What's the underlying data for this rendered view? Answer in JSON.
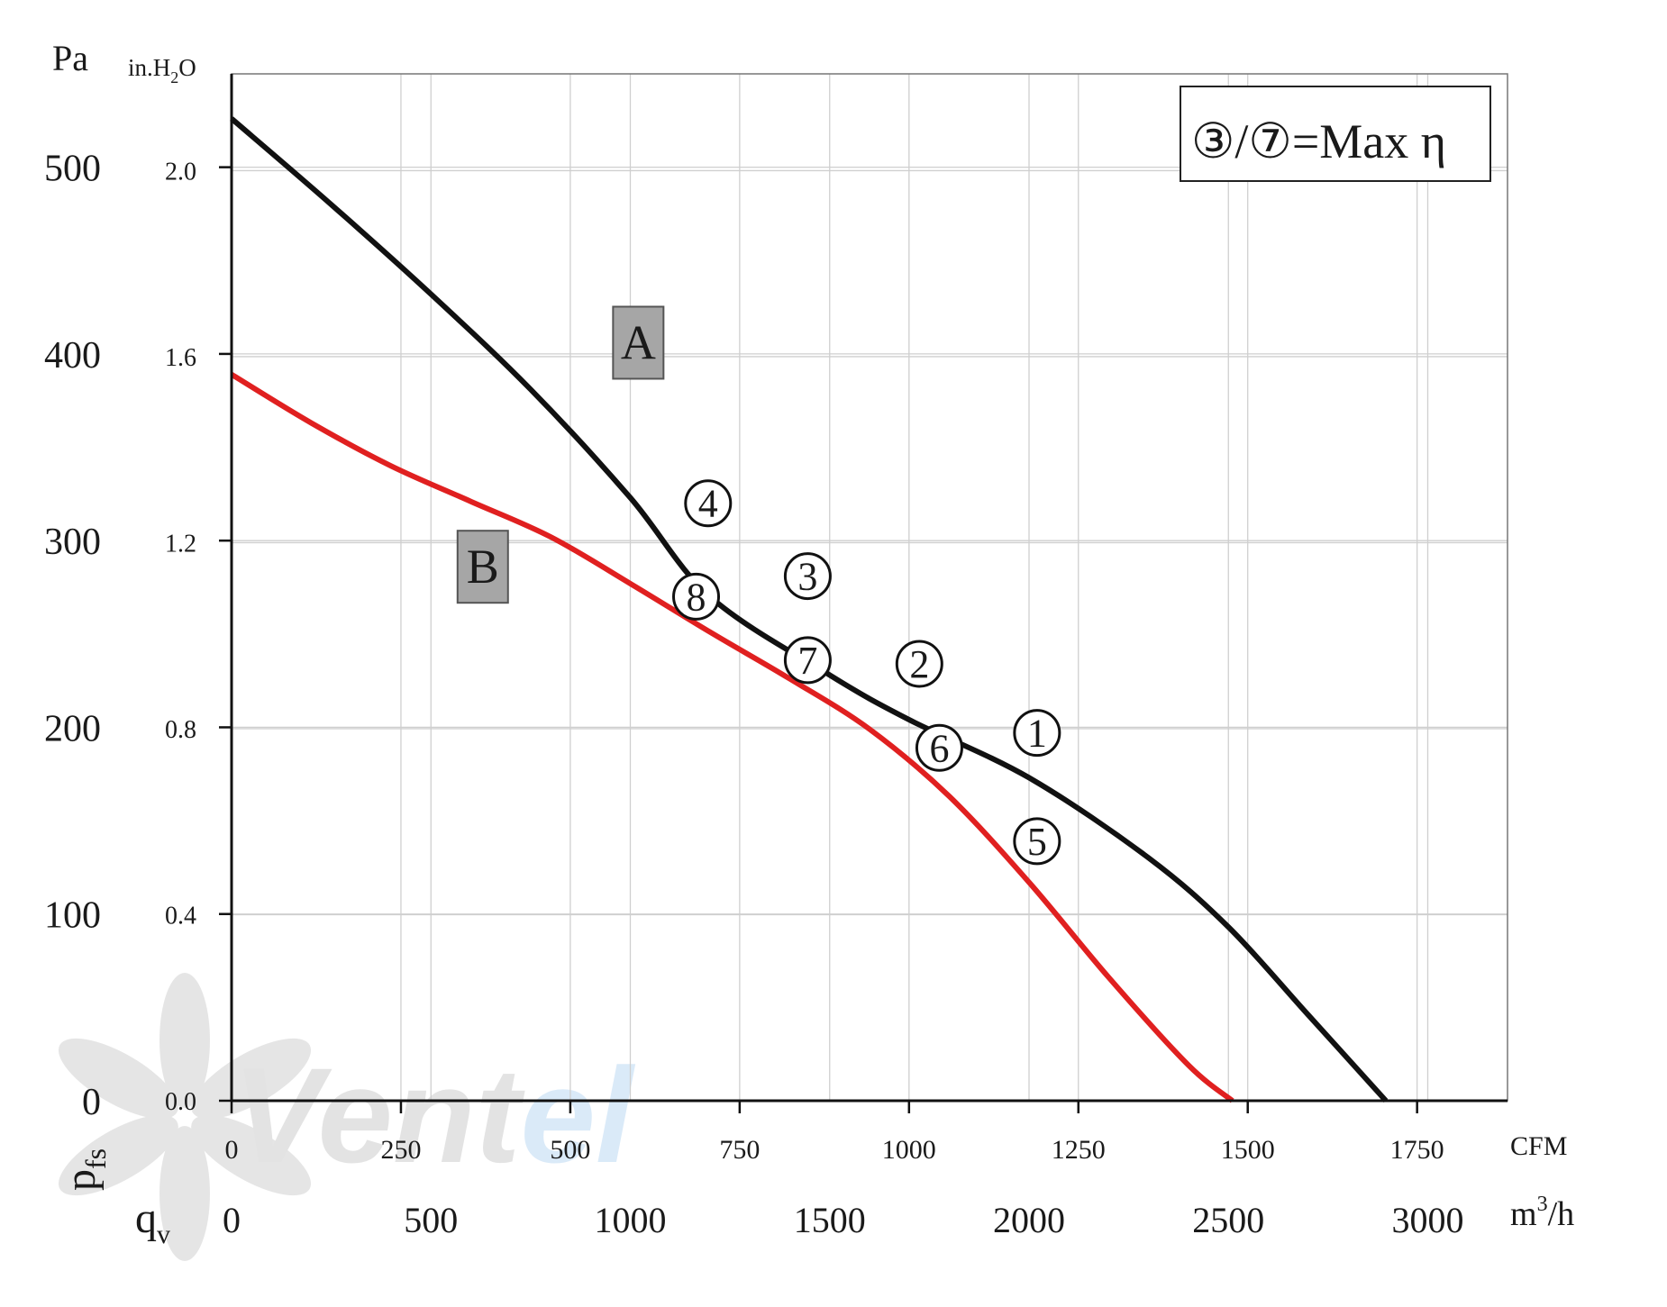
{
  "chart_data": {
    "type": "line",
    "y_left_unit": "Pa",
    "y_inner_unit": "in.H",
    "y_inner_unit_sub": "2",
    "y_inner_unit_tail": "O",
    "y_pa_ticks": [
      0,
      100,
      200,
      300,
      400,
      500
    ],
    "y_inh2o_ticks": [
      "0.0",
      "0.4",
      "0.8",
      "1.2",
      "1.6",
      "2.0"
    ],
    "ylim_pa": [
      0,
      550
    ],
    "x_cfm_label": "CFM",
    "x_cfm_ticks": [
      "0",
      "250",
      "500",
      "750",
      "1000",
      "1250",
      "1500",
      "1750"
    ],
    "x_m3h_label": "m",
    "x_m3h_label_sup": "3",
    "x_m3h_label_tail": "/h",
    "x_m3h_ticks": [
      "0",
      "500",
      "1000",
      "1500",
      "2000",
      "2500",
      "3000"
    ],
    "xlim_m3h": [
      0,
      3200
    ],
    "ylabel_main": "p",
    "ylabel_main_sub": "fs",
    "xlabel_main": "q",
    "xlabel_main_sub": "v",
    "legend_text": "③/⑦=Max η",
    "grid": true,
    "series": [
      {
        "name": "A",
        "color": "#111111",
        "x": [
          0,
          250,
          500,
          750,
          1000,
          1200,
          1500,
          1700,
          2000,
          2300,
          2500,
          2700,
          2895
        ],
        "y": [
          526,
          480,
          432,
          381,
          323,
          270,
          228,
          204,
          173,
          130,
          93,
          46,
          0
        ]
      },
      {
        "name": "B",
        "color": "#e02020",
        "x": [
          0,
          200,
          400,
          600,
          800,
          1000,
          1200,
          1400,
          1600,
          1800,
          2000,
          2200,
          2400,
          2510
        ],
        "y": [
          389,
          363,
          340,
          321,
          302,
          277,
          251,
          226,
          199,
          163,
          117,
          66,
          19,
          0
        ]
      }
    ],
    "points": [
      {
        "label": "1",
        "x": 2020,
        "y": 197
      },
      {
        "label": "2",
        "x": 1725,
        "y": 234
      },
      {
        "label": "3",
        "x": 1445,
        "y": 281
      },
      {
        "label": "4",
        "x": 1195,
        "y": 320
      },
      {
        "label": "5",
        "x": 2020,
        "y": 139
      },
      {
        "label": "6",
        "x": 1775,
        "y": 189
      },
      {
        "label": "7",
        "x": 1445,
        "y": 236
      },
      {
        "label": "8",
        "x": 1165,
        "y": 270
      }
    ],
    "series_labels": [
      {
        "text": "A",
        "x": 1020,
        "y": 406
      },
      {
        "text": "B",
        "x": 630,
        "y": 286
      }
    ]
  },
  "watermark": {
    "text_dark": "Vent",
    "text_blue": "el"
  }
}
